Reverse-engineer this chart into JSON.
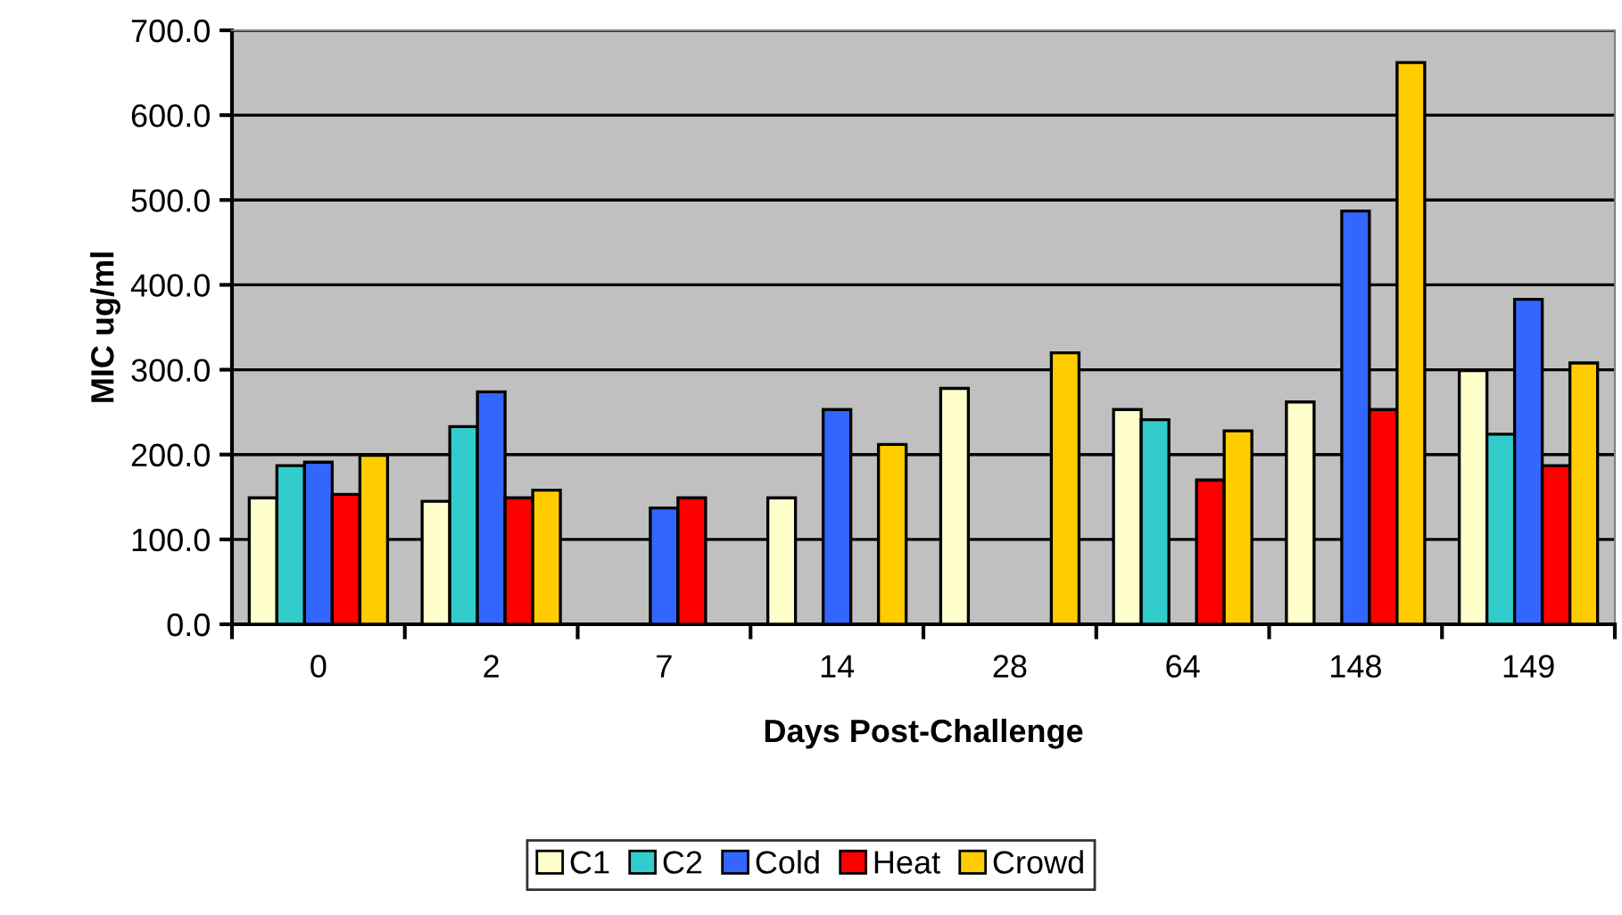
{
  "chart_data": {
    "type": "bar",
    "xlabel": "Days Post-Challenge",
    "ylabel": "MIC ug/ml",
    "categories": [
      "0",
      "2",
      "7",
      "14",
      "28",
      "64",
      "148",
      "149"
    ],
    "series": [
      {
        "name": "C1",
        "color": "#ffffcc",
        "values": [
          149,
          145,
          null,
          149,
          278,
          253,
          262,
          299
        ]
      },
      {
        "name": "C2",
        "color": "#33cccc",
        "values": [
          187,
          233,
          null,
          null,
          null,
          241,
          null,
          224
        ]
      },
      {
        "name": "Cold",
        "color": "#3366ff",
        "values": [
          191,
          274,
          137,
          253,
          null,
          null,
          487,
          383
        ]
      },
      {
        "name": "Heat",
        "color": "#ff0000",
        "values": [
          153,
          149,
          149,
          null,
          null,
          170,
          253,
          187
        ]
      },
      {
        "name": "Crowd",
        "color": "#ffcc00",
        "values": [
          199,
          158,
          null,
          212,
          320,
          228,
          662,
          308
        ]
      }
    ],
    "ylim": [
      0,
      700
    ],
    "yticks": [
      {
        "value": 0,
        "label": "0.0"
      },
      {
        "value": 100,
        "label": "100.0"
      },
      {
        "value": 200,
        "label": "200.0"
      },
      {
        "value": 300,
        "label": "300.0"
      },
      {
        "value": 400,
        "label": "400.0"
      },
      {
        "value": 500,
        "label": "500.0"
      },
      {
        "value": 600,
        "label": "600.0"
      },
      {
        "value": 700,
        "label": "700.0"
      }
    ],
    "grid": "y",
    "legend": "bottom"
  }
}
